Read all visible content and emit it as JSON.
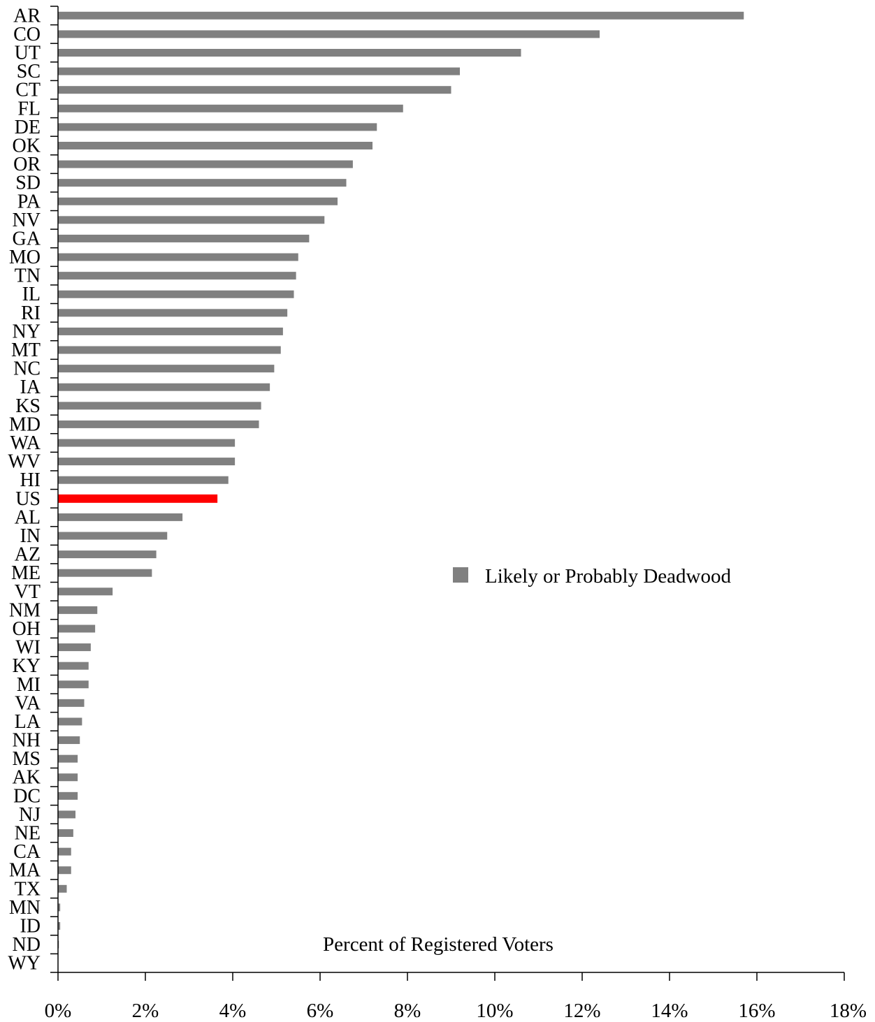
{
  "chart_data": {
    "type": "bar",
    "orientation": "horizontal",
    "categories": [
      "AR",
      "CO",
      "UT",
      "SC",
      "CT",
      "FL",
      "DE",
      "OK",
      "OR",
      "SD",
      "PA",
      "NV",
      "GA",
      "MO",
      "TN",
      "IL",
      "RI",
      "NY",
      "MT",
      "NC",
      "IA",
      "KS",
      "MD",
      "WA",
      "WV",
      "HI",
      "US",
      "AL",
      "IN",
      "AZ",
      "ME",
      "VT",
      "NM",
      "OH",
      "WI",
      "KY",
      "MI",
      "VA",
      "LA",
      "NH",
      "MS",
      "AK",
      "DC",
      "NJ",
      "NE",
      "CA",
      "MA",
      "TX",
      "MN",
      "ID",
      "ND",
      "WY"
    ],
    "series": [
      {
        "name": "Likely or Probably Deadwood",
        "values": [
          15.7,
          12.4,
          10.6,
          9.2,
          9.0,
          7.9,
          7.3,
          7.2,
          6.75,
          6.6,
          6.4,
          6.1,
          5.75,
          5.5,
          5.45,
          5.4,
          5.25,
          5.15,
          5.1,
          4.95,
          4.85,
          4.65,
          4.6,
          4.05,
          4.05,
          3.9,
          3.65,
          2.85,
          2.5,
          2.25,
          2.15,
          1.25,
          0.9,
          0.85,
          0.75,
          0.7,
          0.7,
          0.6,
          0.55,
          0.5,
          0.45,
          0.45,
          0.45,
          0.4,
          0.35,
          0.3,
          0.3,
          0.2,
          0.05,
          0.05,
          0.02,
          0.0
        ]
      }
    ],
    "highlight": {
      "category": "US",
      "color": "#ff0000"
    },
    "bar_color": "#808080",
    "xlim": [
      0,
      18
    ],
    "x_ticks": [
      "0%",
      "2%",
      "4%",
      "6%",
      "8%",
      "10%",
      "12%",
      "14%",
      "16%",
      "18%"
    ],
    "xlabel": "Percent of Registered Voters",
    "legend": {
      "label": "Likely or Probably Deadwood",
      "position": "right-middle"
    }
  }
}
